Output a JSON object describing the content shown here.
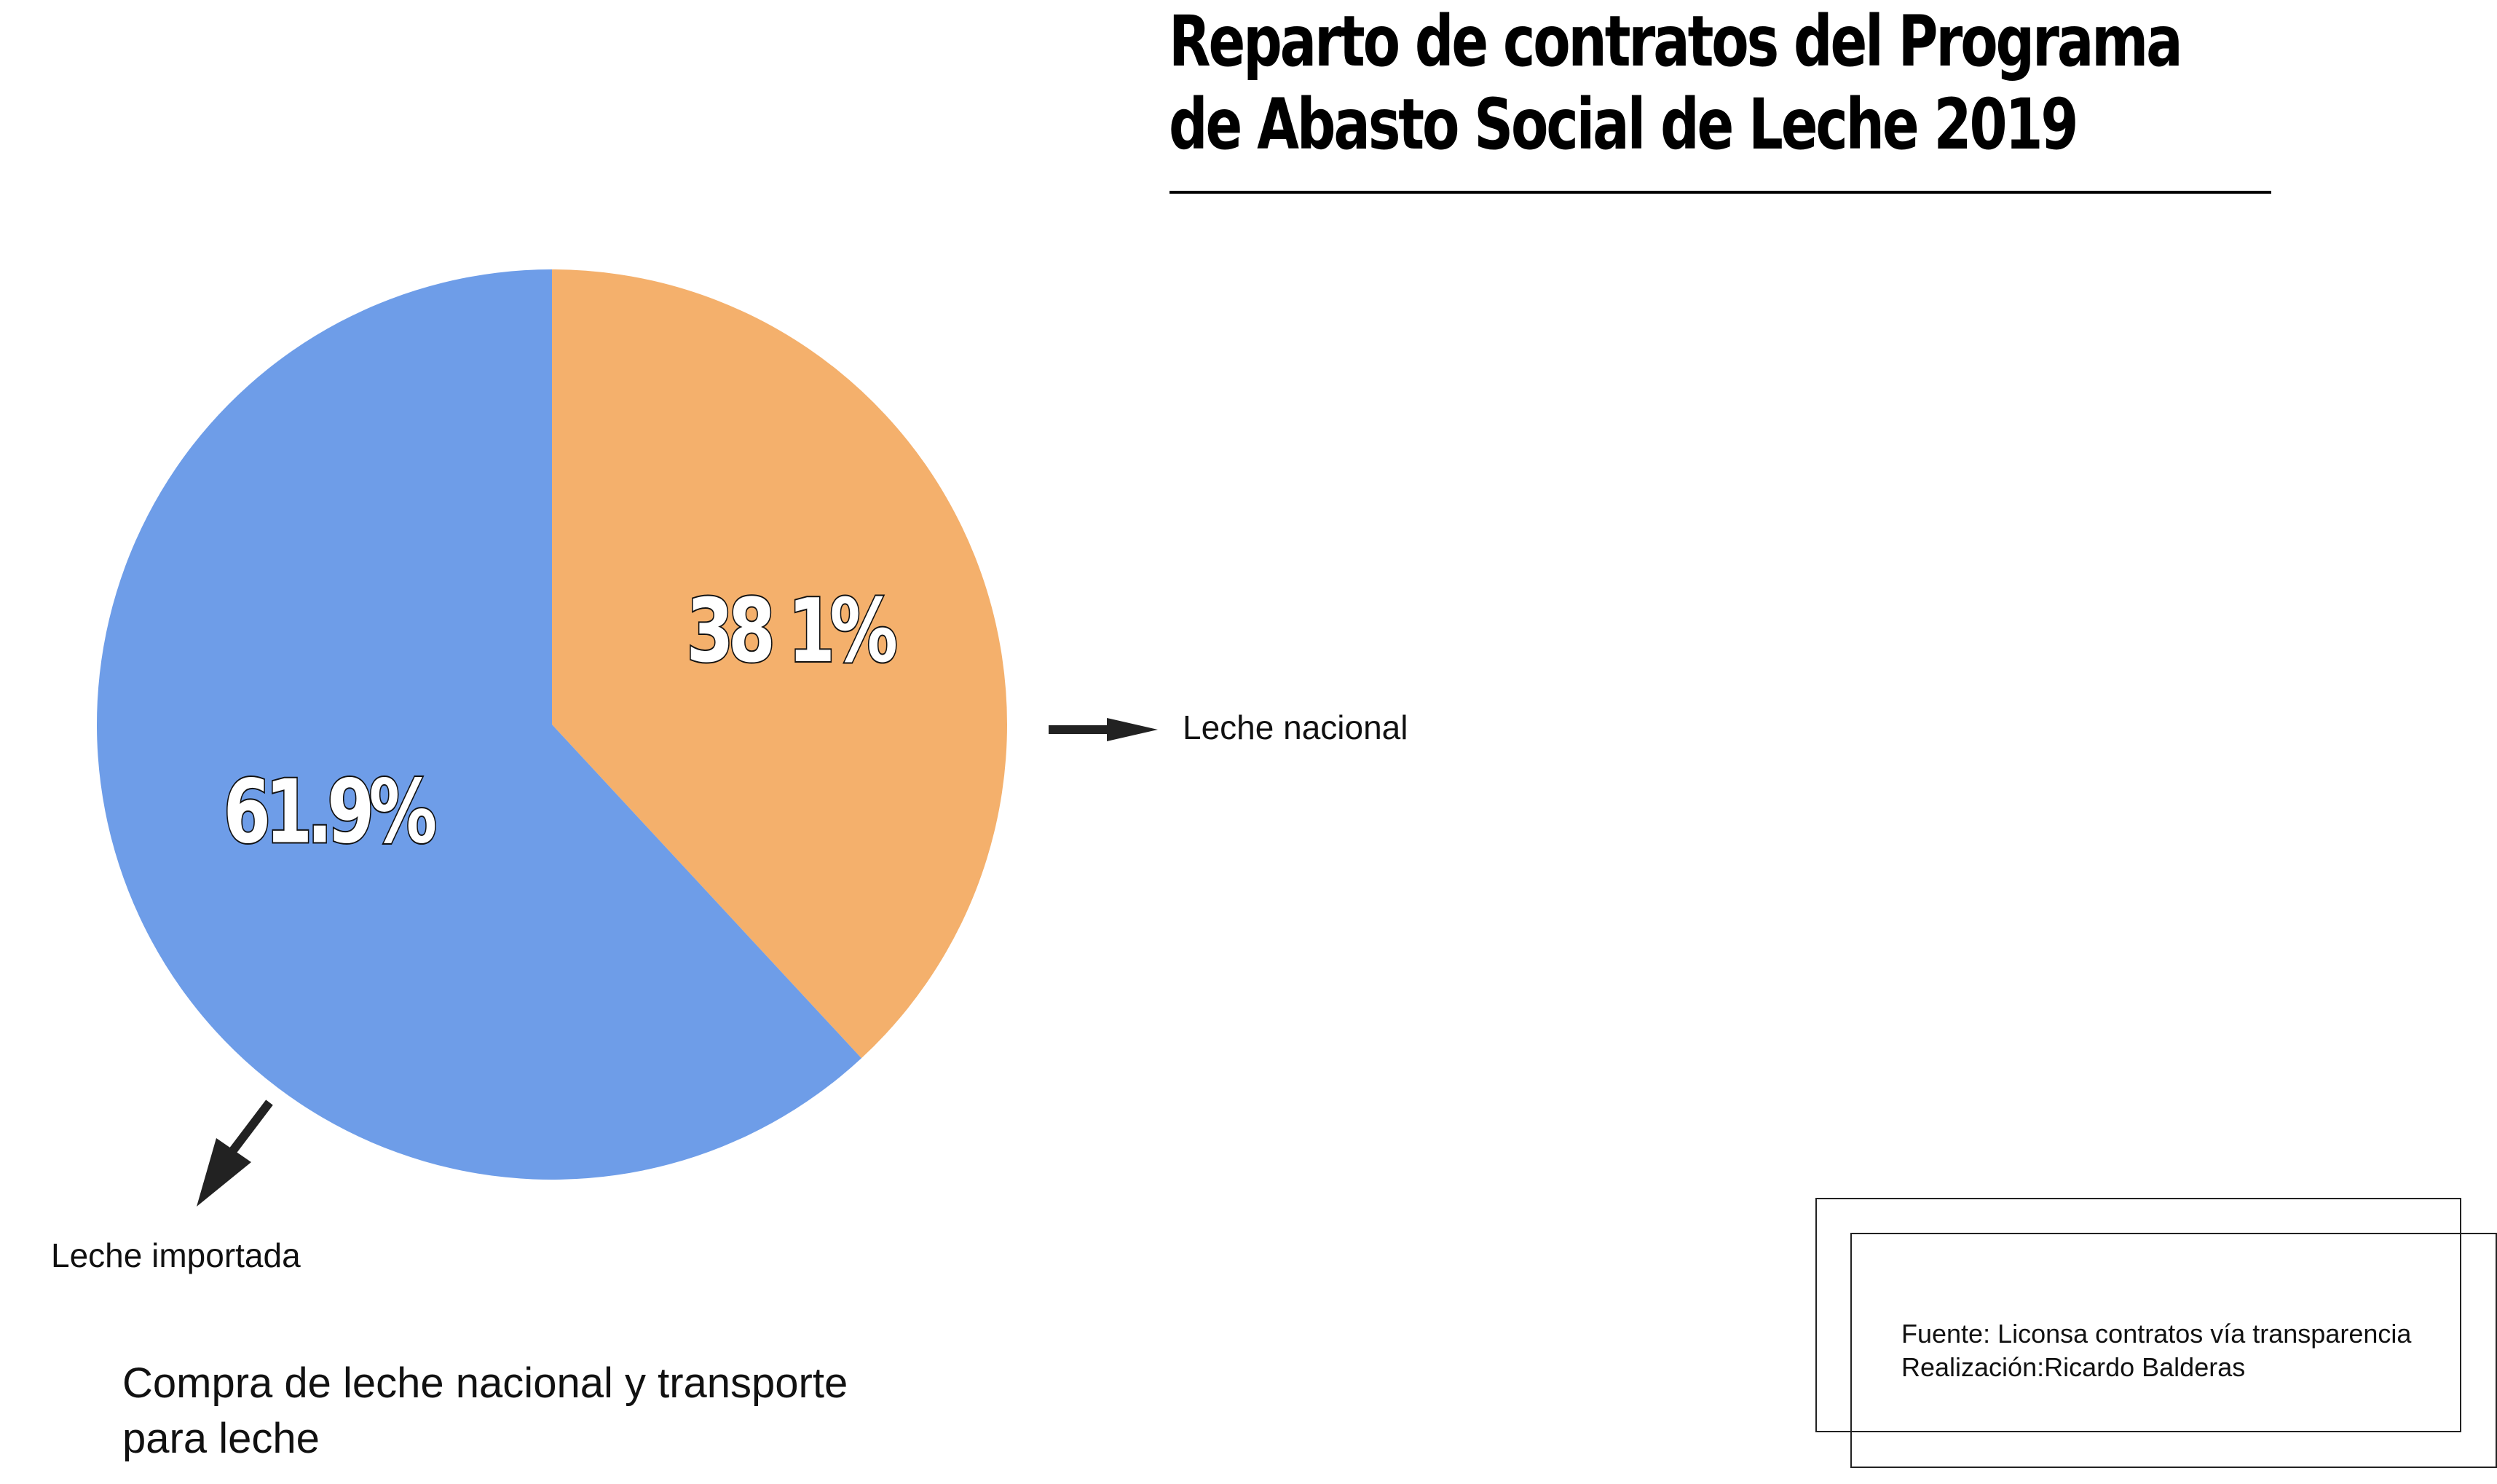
{
  "title": {
    "line1": "Reparto de contratos del Programa",
    "line2": "de Abasto Social de Leche 2019"
  },
  "labels": {
    "nacional": "Leche nacional",
    "importada": "Leche importada"
  },
  "subtitle": {
    "line1": "Compra de leche nacional y transporte",
    "line2": "para leche"
  },
  "source": {
    "line1": "Fuente: Liconsa contratos vía transparencia",
    "line2": "Realización:Ricardo Balderas"
  },
  "colors": {
    "nacional": "#F4B06C",
    "importada": "#6E9DE8",
    "arrow": "#222222"
  },
  "chart_data": {
    "type": "pie",
    "categories": [
      "Leche nacional",
      "Leche importada"
    ],
    "values": [
      38.1,
      61.9
    ],
    "data_labels": [
      "38 1%",
      "61.9%"
    ],
    "title": "Reparto de contratos del Programa de Abasto Social de Leche 2019"
  }
}
